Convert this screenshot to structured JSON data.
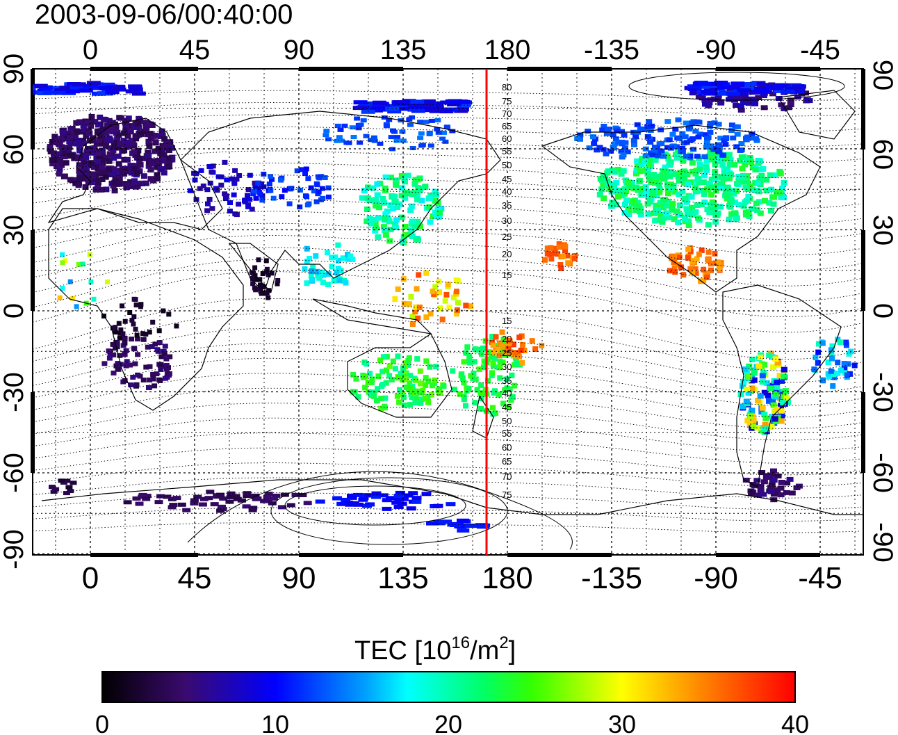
{
  "timestamp": "2003-09-06/00:40:00",
  "top_axis_labels": [
    "0",
    "45",
    "90",
    "135",
    "180",
    "-135",
    "-90",
    "-45"
  ],
  "bottom_axis_labels": [
    "0",
    "45",
    "90",
    "135",
    "180",
    "-135",
    "-90",
    "-45"
  ],
  "left_axis_labels": [
    "90",
    "60",
    "30",
    "0",
    "-30",
    "-60",
    "-90"
  ],
  "right_axis_labels": [
    "90",
    "60",
    "30",
    "0",
    "-30",
    "-60",
    "-90"
  ],
  "contour_labels_north": [
    "80",
    "75",
    "70",
    "65",
    "60",
    "55",
    "50",
    "45",
    "40",
    "35",
    "30",
    "25",
    "20",
    "15"
  ],
  "contour_labels_south": [
    "15",
    "20",
    "25",
    "30",
    "35",
    "40",
    "45",
    "50",
    "55",
    "60",
    "65",
    "70",
    "75"
  ],
  "colorbar": {
    "title_prefix": "TEC  [10",
    "title_sup1": "16",
    "title_mid": "/m",
    "title_sup2": "2",
    "title_suffix": "]",
    "tick_labels": [
      "0",
      "10",
      "20",
      "30",
      "40"
    ],
    "min": 0,
    "max": 40
  },
  "meridian_line_lon": 171,
  "colors": {
    "meridian_line": "#ff0000"
  }
}
